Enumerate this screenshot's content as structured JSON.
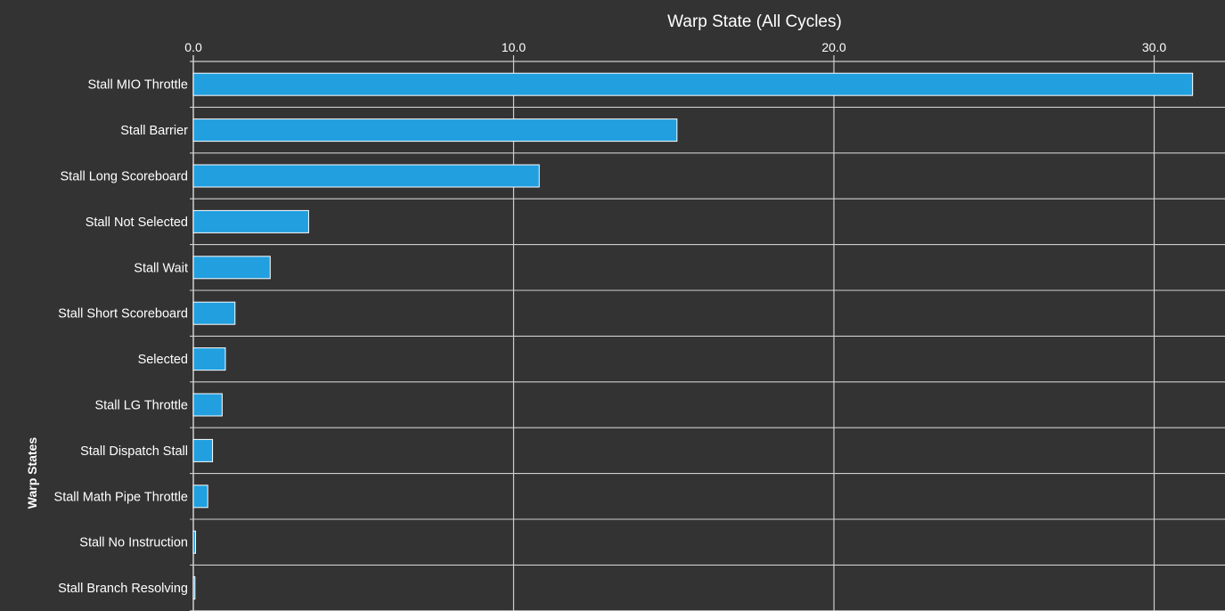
{
  "chart_data": {
    "type": "bar",
    "orientation": "horizontal",
    "title": "Warp State (All Cycles)",
    "xlabel": "",
    "ylabel": "Warp States",
    "xlim": [
      0,
      31.5
    ],
    "x_ticks": [
      "0.0",
      "10.0",
      "20.0",
      "30.0"
    ],
    "x_tick_values": [
      0,
      10,
      20,
      30
    ],
    "x_axis_position": "top",
    "grid": true,
    "legend": "none",
    "categories": [
      "Stall MIO Throttle",
      "Stall Barrier",
      "Stall Long Scoreboard",
      "Stall Not Selected",
      "Stall Wait",
      "Stall Short Scoreboard",
      "Selected",
      "Stall LG Throttle",
      "Stall Dispatch Stall",
      "Stall Math Pipe Throttle",
      "Stall No Instruction",
      "Stall Branch Resolving"
    ],
    "values": [
      31.2,
      15.1,
      10.8,
      3.6,
      2.4,
      1.3,
      1.0,
      0.9,
      0.6,
      0.45,
      0.07,
      0.05
    ],
    "colors": {
      "bar": "#219fdf",
      "bar_outline": "#ffffff",
      "background": "#333333",
      "grid": "#cfcfcf",
      "text": "#ffffff"
    }
  }
}
